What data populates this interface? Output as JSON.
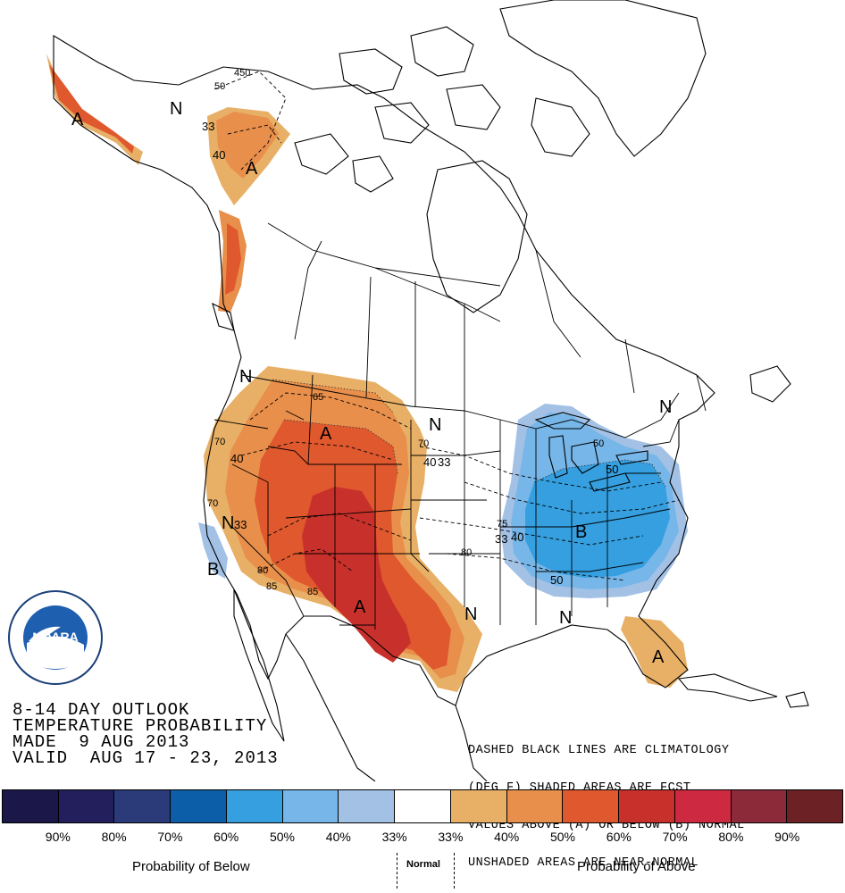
{
  "outlook": {
    "line1": "8-14 DAY OUTLOOK",
    "line2": "TEMPERATURE PROBABILITY",
    "line3": "MADE  9 AUG 2013",
    "line4": "VALID  AUG 17 - 23, 2013"
  },
  "note": {
    "line1": "DASHED BLACK LINES ARE CLIMATOLOGY",
    "line2": "(DEG F) SHADED AREAS ARE FCST",
    "line3": "VALUES ABOVE (A) OR BELOW (B) NORMAL",
    "line4": "UNSHADED AREAS ARE NEAR-NORMAL"
  },
  "logo": {
    "name": "NOARA",
    "ring_text": "NATIONAL OCEANIC AND ATMOSPHERIC ADMINISTRATION · U.S. DEPARTMENT OF COMMERCE"
  },
  "map_labels": {
    "a_alaska_se": "A",
    "n_alaska": "N",
    "a_west": "A",
    "a_southwest": "A",
    "a_florida": "A",
    "b_east": "B",
    "b_pacific": "B",
    "n_plains": "N",
    "n_nc_coast": "N",
    "n_texas": "N",
    "n_gulf": "N",
    "n_calif": "N",
    "n_west_coast": "N"
  },
  "contour_labels": {
    "c_450": "450",
    "c_50_ak": "50",
    "c_33_ak": "33",
    "c_40_ak": "40",
    "c_65": "65",
    "c_70_w": "70",
    "c_40_w": "40",
    "c_70_sw": "70",
    "c_33_sw": "33",
    "c_80": "80",
    "c_85_a": "85",
    "c_85_b": "85",
    "c_70_p": "70",
    "c_40_p": "40",
    "c_33_p": "33",
    "c_75": "75",
    "c_33_e": "33",
    "c_40_e": "40",
    "c_80_e": "80",
    "c_50_e": "50",
    "c_50_e2": "50",
    "c_50_ne": "50"
  },
  "legend": {
    "colors": [
      "#1b1749",
      "#221f5c",
      "#2b3b79",
      "#0c5ea9",
      "#359fe0",
      "#77b6e8",
      "#a2c1e5",
      "#ffffff",
      "#e8b066",
      "#e88f4b",
      "#e0582e",
      "#c8312b",
      "#cd2a41",
      "#8c2a3a",
      "#6c2124"
    ],
    "percents": [
      "90%",
      "80%",
      "70%",
      "60%",
      "50%",
      "40%",
      "33%",
      "33%",
      "40%",
      "50%",
      "60%",
      "70%",
      "80%",
      "90%"
    ],
    "below_caption": "Probability of Below",
    "normal_caption": "Normal",
    "above_caption": "Probability of Above"
  },
  "colors": {
    "above_40": "#e8b066",
    "above_50": "#e88f4b",
    "above_60": "#e0582e",
    "above_70": "#c8312b",
    "below_40": "#a2c1e5",
    "below_50": "#77b6e8",
    "below_60": "#359fe0"
  }
}
